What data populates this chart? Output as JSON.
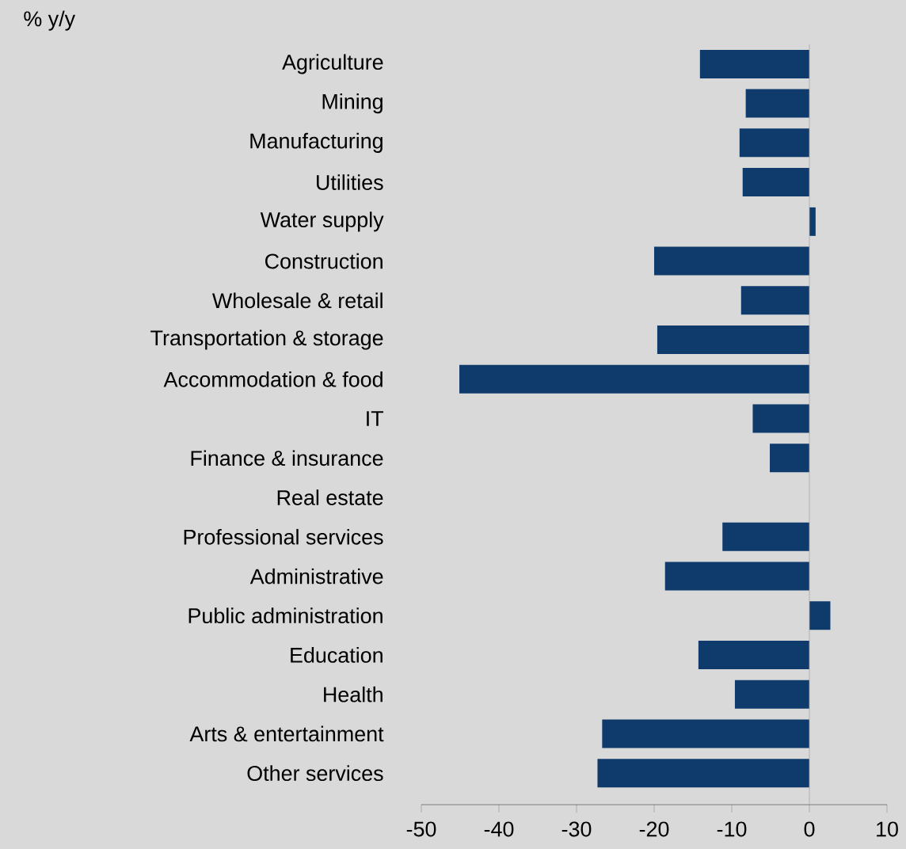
{
  "chart_data": {
    "type": "bar",
    "orientation": "horizontal",
    "ylabel": "% y/y",
    "categories": [
      "Agriculture",
      "Mining",
      "Manufacturing",
      "Utilities",
      "Water supply",
      "Construction",
      "Wholesale & retail",
      "Transportation & storage",
      "Accommodation & food",
      "IT",
      "Finance & insurance",
      "Real estate",
      "Professional services",
      "Administrative",
      "Public administration",
      "Education",
      "Health",
      "Arts & entertainment",
      "Other services"
    ],
    "values": [
      -14.1,
      -8.2,
      -9.0,
      -8.6,
      0.8,
      -20.0,
      -8.8,
      -19.6,
      -45.1,
      -7.3,
      -5.1,
      0,
      -11.2,
      -18.6,
      2.7,
      -14.3,
      -9.6,
      -26.7,
      -27.3
    ],
    "color": "#0e3a6c",
    "xlim": [
      -50,
      10
    ],
    "xticks": [
      -50,
      -40,
      -30,
      -20,
      -10,
      0,
      10
    ],
    "ref_lines": [
      {
        "axis": "x",
        "value": 0,
        "color": "#a6a6a6"
      }
    ]
  }
}
